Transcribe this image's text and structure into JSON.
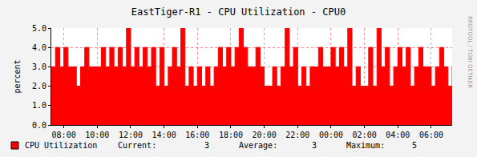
{
  "chart_data": {
    "type": "area",
    "title": "EastTiger-R1 - CPU Utilization - CPU0",
    "y_label": "percent",
    "x": [
      7.25,
      7.5,
      7.75,
      8,
      8.25,
      8.5,
      8.75,
      9,
      9.25,
      9.5,
      9.75,
      10,
      10.25,
      10.5,
      10.75,
      11,
      11.25,
      11.5,
      11.75,
      12,
      12.25,
      12.5,
      12.75,
      13,
      13.25,
      13.5,
      13.75,
      14,
      14.25,
      14.5,
      14.75,
      15,
      15.25,
      15.5,
      15.75,
      16,
      16.25,
      16.5,
      16.75,
      17,
      17.25,
      17.5,
      17.75,
      18,
      18.25,
      18.5,
      18.75,
      19,
      19.25,
      19.5,
      19.75,
      20,
      20.25,
      20.5,
      20.75,
      21,
      21.25,
      21.5,
      21.75,
      22,
      22.25,
      22.5,
      22.75,
      23,
      23.25,
      23.5,
      23.75,
      24,
      24.25,
      24.5,
      24.75,
      25,
      25.25,
      25.5,
      25.75,
      26,
      26.25,
      26.5,
      26.75,
      27,
      27.25,
      27.5,
      27.75,
      28,
      28.25,
      28.5,
      28.75,
      29,
      29.25,
      29.5,
      29.75,
      30,
      30.25,
      30.5,
      30.75,
      31,
      31.25
    ],
    "series": [
      {
        "name": "CPU Utilization",
        "color": "#FF0000",
        "values": [
          3,
          4,
          3,
          4,
          3,
          3,
          2,
          3,
          4,
          3,
          3,
          3,
          4,
          3,
          4,
          3,
          4,
          3,
          5,
          3,
          4,
          3,
          4,
          3,
          4,
          2,
          4,
          2,
          3,
          4,
          3,
          5,
          2,
          3,
          2,
          3,
          2,
          3,
          2,
          3,
          4,
          3,
          4,
          3,
          4,
          5,
          4,
          3,
          3,
          4,
          3,
          2,
          2,
          3,
          2,
          3,
          5,
          3,
          4,
          2,
          3,
          2,
          3,
          3,
          4,
          3,
          3,
          4,
          3,
          4,
          3,
          5,
          2,
          3,
          2,
          2,
          4,
          2,
          5,
          3,
          4,
          2,
          3,
          4,
          3,
          4,
          2,
          3,
          4,
          3,
          3,
          2,
          3,
          4,
          3,
          2,
          3
        ]
      }
    ],
    "xlim": [
      7.25,
      31.25
    ],
    "xticks": [
      {
        "value": 8,
        "label": "08:00"
      },
      {
        "value": 10,
        "label": "10:00"
      },
      {
        "value": 12,
        "label": "12:00"
      },
      {
        "value": 14,
        "label": "14:00"
      },
      {
        "value": 16,
        "label": "16:00"
      },
      {
        "value": 18,
        "label": "18:00"
      },
      {
        "value": 20,
        "label": "20:00"
      },
      {
        "value": 22,
        "label": "22:00"
      },
      {
        "value": 24,
        "label": "00:00"
      },
      {
        "value": 26,
        "label": "02:00"
      },
      {
        "value": 28,
        "label": "04:00"
      },
      {
        "value": 30,
        "label": "06:00"
      }
    ],
    "ylim": [
      0,
      5
    ],
    "yticks": [
      {
        "value": 0,
        "label": "0.0"
      },
      {
        "value": 1,
        "label": "1.0"
      },
      {
        "value": 2,
        "label": "2.0"
      },
      {
        "value": 3,
        "label": "3.0"
      },
      {
        "value": 4,
        "label": "4.0"
      },
      {
        "value": 5,
        "label": "5.0"
      }
    ],
    "grid": true,
    "stats": [
      {
        "label": "Current:",
        "value": 3
      },
      {
        "label": "Average:",
        "value": 3
      },
      {
        "label": "Maximum:",
        "value": 5
      }
    ],
    "annotations": [
      "RRDTOOL / TOBI OETIKER"
    ]
  }
}
